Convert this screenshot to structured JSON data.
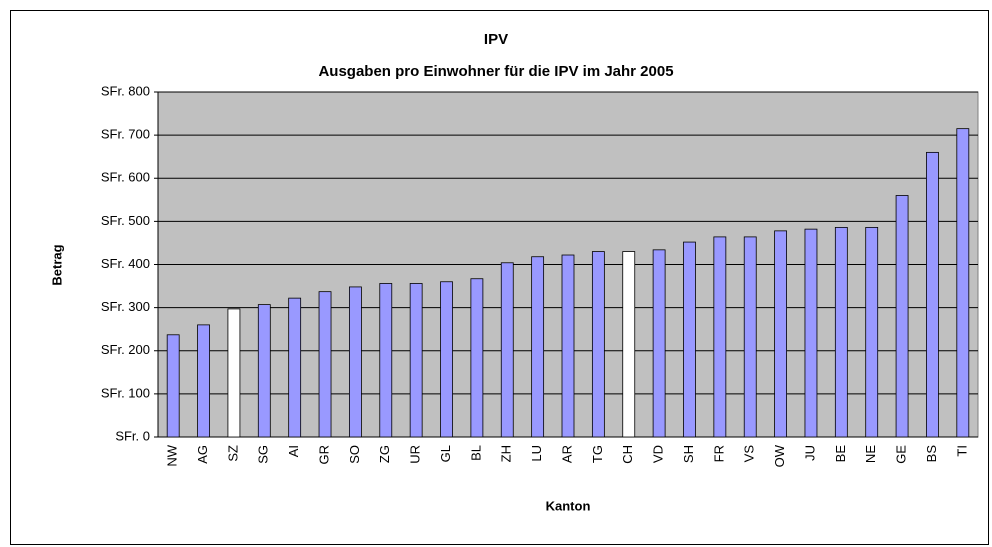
{
  "chart_data": {
    "type": "bar",
    "title": "IPV",
    "subtitle": "Ausgaben pro Einwohner für die IPV im Jahr 2005",
    "x_label": "Kanton",
    "y_label": "Betrag",
    "categories": [
      "NW",
      "AG",
      "SZ",
      "SG",
      "AI",
      "GR",
      "SO",
      "ZG",
      "UR",
      "GL",
      "BL",
      "ZH",
      "LU",
      "AR",
      "TG",
      "CH",
      "VD",
      "SH",
      "FR",
      "VS",
      "OW",
      "JU",
      "BE",
      "NE",
      "GE",
      "BS",
      "TI"
    ],
    "values": [
      237,
      260,
      297,
      307,
      322,
      337,
      348,
      356,
      356,
      360,
      367,
      404,
      418,
      422,
      430,
      430,
      434,
      452,
      464,
      464,
      478,
      482,
      486,
      486,
      560,
      660,
      715
    ],
    "colors": [
      "#9999ff",
      "#9999ff",
      "#ffffff",
      "#9999ff",
      "#9999ff",
      "#9999ff",
      "#9999ff",
      "#9999ff",
      "#9999ff",
      "#9999ff",
      "#9999ff",
      "#9999ff",
      "#9999ff",
      "#9999ff",
      "#9999ff",
      "#ffffff",
      "#9999ff",
      "#9999ff",
      "#9999ff",
      "#9999ff",
      "#9999ff",
      "#9999ff",
      "#9999ff",
      "#9999ff",
      "#9999ff",
      "#9999ff",
      "#9999ff"
    ],
    "plot_background": "#c0c0c0",
    "ylim": [
      0,
      800
    ],
    "yticks": [
      {
        "value": 0,
        "label": "SFr. 0"
      },
      {
        "value": 100,
        "label": "SFr. 100"
      },
      {
        "value": 200,
        "label": "SFr. 200"
      },
      {
        "value": 300,
        "label": "SFr. 300"
      },
      {
        "value": 400,
        "label": "SFr. 400"
      },
      {
        "value": 500,
        "label": "SFr. 500"
      },
      {
        "value": 600,
        "label": "SFr. 600"
      },
      {
        "value": 700,
        "label": "SFr. 700"
      },
      {
        "value": 800,
        "label": "SFr. 800"
      }
    ],
    "grid": true
  }
}
